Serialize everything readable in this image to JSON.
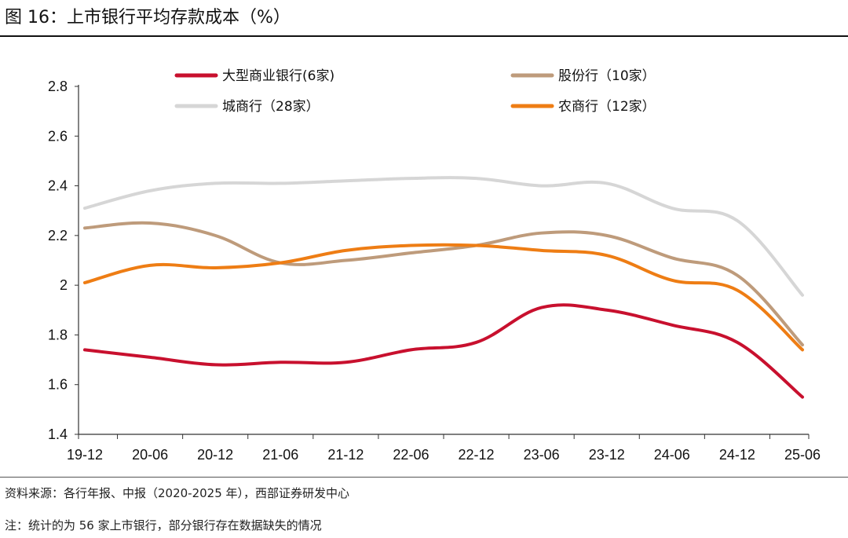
{
  "figure": {
    "title": "图 16：上市银行平均存款成本（%）",
    "source": "资料来源：各行年报、中报（2020-2025 年），西部证券研发中心",
    "note": "注：统计的为 56 家上市银行，部分银行存在数据缺失的情况"
  },
  "chart_data": {
    "type": "line",
    "title": "上市银行平均存款成本（%）",
    "xlabel": "",
    "ylabel": "",
    "categories": [
      "19-12",
      "20-06",
      "20-12",
      "21-06",
      "21-12",
      "22-06",
      "22-12",
      "23-06",
      "23-12",
      "24-06",
      "24-12",
      "25-06"
    ],
    "ylim": [
      1.4,
      2.8
    ],
    "yticks": [
      1.4,
      1.6,
      1.8,
      2,
      2.2,
      2.4,
      2.6,
      2.8
    ],
    "ytick_labels": [
      "1.4",
      "1.6",
      "1.8",
      "2",
      "2.2",
      "2.4",
      "2.6",
      "2.8"
    ],
    "grid": false,
    "legend_position": "top",
    "series": [
      {
        "name": "大型商业银行(6家)",
        "color": "#C8102E",
        "values": [
          1.74,
          1.71,
          1.68,
          1.69,
          1.69,
          1.74,
          1.77,
          1.91,
          1.9,
          1.84,
          1.77,
          1.55
        ]
      },
      {
        "name": "股份行（10家）",
        "color": "#BE9B7B",
        "values": [
          2.23,
          2.25,
          2.2,
          2.09,
          2.1,
          2.13,
          2.16,
          2.21,
          2.2,
          2.11,
          2.04,
          1.76
        ]
      },
      {
        "name": "城商行（28家）",
        "color": "#D6D6D6",
        "values": [
          2.31,
          2.38,
          2.41,
          2.41,
          2.42,
          2.43,
          2.43,
          2.4,
          2.41,
          2.31,
          2.26,
          1.96
        ]
      },
      {
        "name": "农商行（12家）",
        "color": "#EE7D14",
        "values": [
          2.01,
          2.08,
          2.07,
          2.09,
          2.14,
          2.16,
          2.16,
          2.14,
          2.12,
          2.02,
          1.98,
          1.74
        ]
      }
    ]
  }
}
